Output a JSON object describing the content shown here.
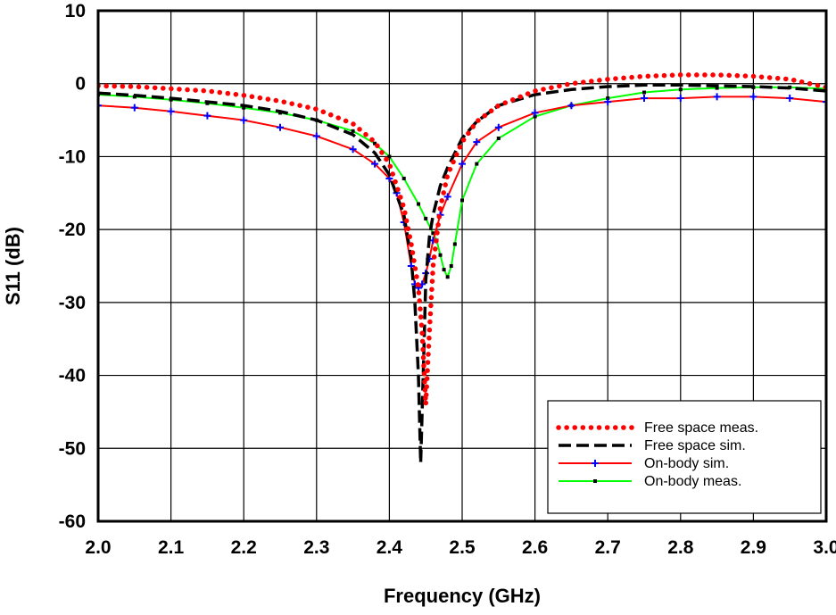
{
  "chart_data": {
    "type": "line",
    "title": "",
    "xlabel": "Frequency (GHz)",
    "ylabel": "S11 (dB)",
    "xlim": [
      2.0,
      3.0
    ],
    "ylim": [
      -60,
      10
    ],
    "grid": true,
    "legend_position": "bottom-right",
    "x_ticks": [
      "2.0",
      "2.1",
      "2.2",
      "2.3",
      "2.4",
      "2.5",
      "2.6",
      "2.7",
      "2.8",
      "2.9",
      "3.0"
    ],
    "y_ticks": [
      "10",
      "0",
      "-10",
      "-20",
      "-30",
      "-40",
      "-50",
      "-60"
    ],
    "series": [
      {
        "name": "Free space meas.",
        "color": "#ff0000",
        "style": "dotted",
        "x": [
          2.0,
          2.05,
          2.1,
          2.15,
          2.2,
          2.25,
          2.3,
          2.35,
          2.38,
          2.4,
          2.42,
          2.43,
          2.44,
          2.445,
          2.45,
          2.455,
          2.46,
          2.47,
          2.48,
          2.5,
          2.52,
          2.55,
          2.6,
          2.65,
          2.7,
          2.75,
          2.8,
          2.85,
          2.9,
          2.95,
          3.0
        ],
        "y": [
          -0.3,
          -0.4,
          -0.7,
          -1.0,
          -1.6,
          -2.4,
          -3.5,
          -5.5,
          -8,
          -11,
          -17,
          -22,
          -28,
          -34,
          -44,
          -34,
          -25,
          -17,
          -12.5,
          -8,
          -5.2,
          -3,
          -1,
          0,
          0.6,
          1.0,
          1.2,
          1.2,
          1.0,
          0.6,
          -0.5
        ]
      },
      {
        "name": "Free space sim.",
        "color": "#000000",
        "style": "dashed",
        "x": [
          2.0,
          2.05,
          2.1,
          2.15,
          2.2,
          2.25,
          2.3,
          2.35,
          2.38,
          2.4,
          2.42,
          2.43,
          2.435,
          2.44,
          2.443,
          2.447,
          2.45,
          2.455,
          2.46,
          2.47,
          2.48,
          2.5,
          2.52,
          2.55,
          2.6,
          2.65,
          2.7,
          2.75,
          2.8,
          2.85,
          2.9,
          2.95,
          3.0
        ],
        "y": [
          -1.3,
          -1.6,
          -2.0,
          -2.5,
          -3.0,
          -3.8,
          -5.0,
          -7.0,
          -9.5,
          -12.5,
          -18,
          -24,
          -30,
          -40,
          -52,
          -38,
          -27,
          -21,
          -18,
          -14,
          -11.5,
          -7.5,
          -5.2,
          -3,
          -1.5,
          -0.8,
          -0.4,
          -0.2,
          -0.2,
          -0.3,
          -0.4,
          -0.6,
          -1.0
        ]
      },
      {
        "name": "On-body sim.",
        "color": "#ff0000",
        "marker": "plus",
        "marker_color": "#0000ff",
        "style": "solid",
        "x": [
          2.0,
          2.05,
          2.1,
          2.15,
          2.2,
          2.25,
          2.3,
          2.35,
          2.38,
          2.4,
          2.41,
          2.42,
          2.43,
          2.435,
          2.44,
          2.445,
          2.45,
          2.455,
          2.46,
          2.47,
          2.48,
          2.5,
          2.52,
          2.55,
          2.6,
          2.65,
          2.7,
          2.75,
          2.8,
          2.85,
          2.9,
          2.95,
          3.0
        ],
        "y": [
          -3,
          -3.3,
          -3.8,
          -4.4,
          -5.0,
          -6.0,
          -7.2,
          -9,
          -11,
          -13,
          -15,
          -19,
          -25,
          -27.5,
          -28,
          -27.5,
          -26,
          -24,
          -21.5,
          -18,
          -15.5,
          -11,
          -8,
          -6,
          -4,
          -3,
          -2.5,
          -2,
          -2,
          -1.8,
          -1.8,
          -2.0,
          -2.5
        ]
      },
      {
        "name": "On-body meas.",
        "color": "#00ff00",
        "marker": "square",
        "marker_color": "#000000",
        "style": "solid",
        "x": [
          2.0,
          2.05,
          2.1,
          2.15,
          2.2,
          2.25,
          2.3,
          2.35,
          2.38,
          2.4,
          2.42,
          2.44,
          2.45,
          2.46,
          2.465,
          2.47,
          2.475,
          2.48,
          2.485,
          2.49,
          2.5,
          2.52,
          2.55,
          2.6,
          2.65,
          2.7,
          2.75,
          2.8,
          2.85,
          2.9,
          2.95,
          3.0
        ],
        "y": [
          -1.5,
          -1.8,
          -2.2,
          -2.7,
          -3.3,
          -4.0,
          -5.0,
          -6.5,
          -8.2,
          -10,
          -13,
          -16.5,
          -18.5,
          -20.5,
          -21.5,
          -23.5,
          -25.5,
          -26.5,
          -25,
          -22,
          -16,
          -11,
          -7.5,
          -4.5,
          -3,
          -2,
          -1.2,
          -0.8,
          -0.6,
          -0.5,
          -0.5,
          -0.7
        ]
      }
    ]
  }
}
